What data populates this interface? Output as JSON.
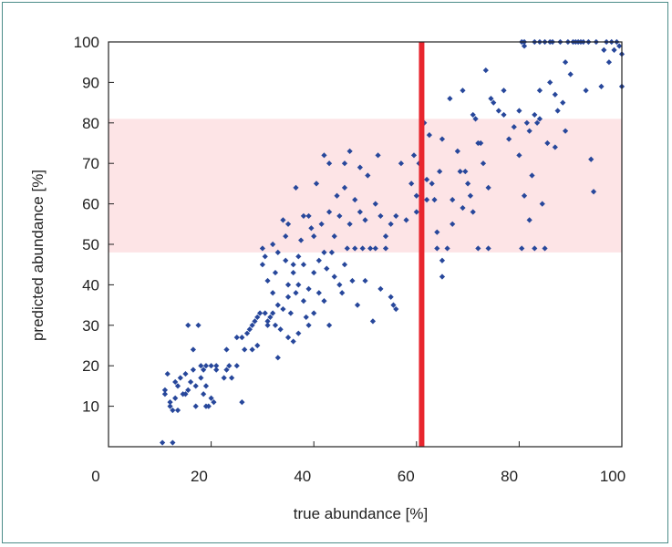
{
  "chart_data": {
    "type": "scatter",
    "title": "",
    "xlabel": "true abundance [%]",
    "ylabel": "predicted abundance [%]",
    "xlim": [
      0,
      100
    ],
    "ylim": [
      0,
      100
    ],
    "xticks": [
      0,
      20,
      40,
      60,
      80,
      100
    ],
    "yticks": [
      10,
      20,
      30,
      40,
      50,
      60,
      70,
      80,
      90,
      100
    ],
    "grid": false,
    "point_color": "#27479b",
    "band": {
      "y_range": [
        48,
        81
      ],
      "color": "#fde4e6"
    },
    "reference_line": {
      "x": 61,
      "color": "#e8262e"
    },
    "series": [
      {
        "points": [
          [
            10.5,
            1
          ],
          [
            12.5,
            1
          ],
          [
            11,
            14
          ],
          [
            11,
            13
          ],
          [
            11.5,
            18
          ],
          [
            12,
            11
          ],
          [
            12,
            10
          ],
          [
            12.5,
            9
          ],
          [
            13,
            12
          ],
          [
            13,
            16
          ],
          [
            13.5,
            15
          ],
          [
            13.5,
            9
          ],
          [
            14,
            17
          ],
          [
            14.5,
            13
          ],
          [
            15,
            13
          ],
          [
            15,
            18
          ],
          [
            15.5,
            14
          ],
          [
            15.5,
            30
          ],
          [
            16,
            16
          ],
          [
            16.5,
            24
          ],
          [
            16.5,
            19
          ],
          [
            17,
            15
          ],
          [
            17,
            10
          ],
          [
            17.5,
            30
          ],
          [
            18,
            20
          ],
          [
            18,
            17
          ],
          [
            18.5,
            19
          ],
          [
            18.5,
            13
          ],
          [
            19,
            20
          ],
          [
            19,
            15
          ],
          [
            19,
            10
          ],
          [
            19.5,
            10
          ],
          [
            20,
            20
          ],
          [
            20,
            12
          ],
          [
            20.5,
            11
          ],
          [
            21,
            19
          ],
          [
            21,
            20
          ],
          [
            22.5,
            17
          ],
          [
            23,
            19
          ],
          [
            23,
            24
          ],
          [
            23.5,
            20
          ],
          [
            24,
            17
          ],
          [
            25,
            27
          ],
          [
            25,
            20
          ],
          [
            26,
            27
          ],
          [
            26,
            11
          ],
          [
            26.5,
            24
          ],
          [
            27,
            28
          ],
          [
            27.5,
            29
          ],
          [
            28,
            24
          ],
          [
            28,
            30
          ],
          [
            28.5,
            31
          ],
          [
            29,
            32
          ],
          [
            29,
            25
          ],
          [
            29.5,
            33
          ],
          [
            30,
            45
          ],
          [
            30,
            49
          ],
          [
            30.5,
            47
          ],
          [
            30.5,
            33
          ],
          [
            31,
            30
          ],
          [
            31,
            41
          ],
          [
            31,
            31
          ],
          [
            31.5,
            32
          ],
          [
            32,
            38
          ],
          [
            32,
            33
          ],
          [
            32,
            50
          ],
          [
            32.5,
            30
          ],
          [
            32.5,
            43
          ],
          [
            33,
            35
          ],
          [
            33,
            22
          ],
          [
            33,
            48
          ],
          [
            33.5,
            29
          ],
          [
            34,
            56
          ],
          [
            34,
            34
          ],
          [
            34.5,
            52
          ],
          [
            34.5,
            46
          ],
          [
            35,
            55
          ],
          [
            35,
            40
          ],
          [
            35,
            27
          ],
          [
            35,
            37
          ],
          [
            35.5,
            33
          ],
          [
            36,
            43
          ],
          [
            36,
            45
          ],
          [
            36,
            26
          ],
          [
            36.5,
            64
          ],
          [
            36.5,
            38
          ],
          [
            37,
            28
          ],
          [
            37,
            47
          ],
          [
            37,
            40
          ],
          [
            37.5,
            51
          ],
          [
            38,
            36
          ],
          [
            38,
            57
          ],
          [
            38,
            45
          ],
          [
            38.5,
            32
          ],
          [
            39,
            57
          ],
          [
            39,
            39
          ],
          [
            39,
            30
          ],
          [
            39.5,
            54
          ],
          [
            40,
            33
          ],
          [
            40,
            43
          ],
          [
            40,
            52
          ],
          [
            40.5,
            65
          ],
          [
            41,
            46
          ],
          [
            41,
            38
          ],
          [
            41.5,
            55
          ],
          [
            42,
            48
          ],
          [
            42,
            36
          ],
          [
            42,
            72
          ],
          [
            42.5,
            44
          ],
          [
            43,
            58
          ],
          [
            43,
            70
          ],
          [
            43,
            30
          ],
          [
            43.5,
            48
          ],
          [
            44,
            52
          ],
          [
            44,
            42
          ],
          [
            44.5,
            62
          ],
          [
            45,
            57
          ],
          [
            45,
            40
          ],
          [
            45.5,
            38
          ],
          [
            46,
            64
          ],
          [
            46,
            45
          ],
          [
            46,
            70
          ],
          [
            46.5,
            49
          ],
          [
            47,
            73
          ],
          [
            47,
            55
          ],
          [
            47.5,
            41
          ],
          [
            48,
            61
          ],
          [
            48,
            49
          ],
          [
            48.5,
            35
          ],
          [
            49,
            69
          ],
          [
            49,
            58
          ],
          [
            49.5,
            49
          ],
          [
            50,
            56
          ],
          [
            50,
            41
          ],
          [
            50.5,
            67
          ],
          [
            51,
            49
          ],
          [
            51.5,
            31
          ],
          [
            52,
            60
          ],
          [
            52,
            49
          ],
          [
            52.5,
            72
          ],
          [
            53,
            57
          ],
          [
            53,
            39
          ],
          [
            54,
            52
          ],
          [
            54,
            49
          ],
          [
            55,
            37
          ],
          [
            55,
            55
          ],
          [
            55.5,
            35
          ],
          [
            56,
            57
          ],
          [
            56,
            34
          ],
          [
            57,
            70
          ],
          [
            58,
            56
          ],
          [
            59,
            65
          ],
          [
            59.5,
            72
          ],
          [
            60,
            62
          ],
          [
            60,
            58
          ],
          [
            60.5,
            70
          ],
          [
            61.5,
            80
          ],
          [
            62,
            61
          ],
          [
            62,
            66
          ],
          [
            62.5,
            77
          ],
          [
            63,
            65
          ],
          [
            63.5,
            61
          ],
          [
            64,
            53
          ],
          [
            64,
            49
          ],
          [
            64.5,
            68
          ],
          [
            65,
            76
          ],
          [
            65,
            42
          ],
          [
            65,
            46
          ],
          [
            66,
            49
          ],
          [
            66.5,
            86
          ],
          [
            67,
            61
          ],
          [
            67,
            55
          ],
          [
            68,
            73
          ],
          [
            68.5,
            68
          ],
          [
            69,
            59
          ],
          [
            69,
            88
          ],
          [
            69.5,
            68
          ],
          [
            70,
            65
          ],
          [
            70.5,
            62
          ],
          [
            71,
            58
          ],
          [
            71,
            82
          ],
          [
            71.5,
            81
          ],
          [
            72,
            75
          ],
          [
            72,
            49
          ],
          [
            72.5,
            75
          ],
          [
            73,
            70
          ],
          [
            73.5,
            93
          ],
          [
            74,
            49
          ],
          [
            74,
            64
          ],
          [
            74.5,
            86
          ],
          [
            75,
            85
          ],
          [
            76,
            83
          ],
          [
            77,
            88
          ],
          [
            77,
            82
          ],
          [
            78,
            76
          ],
          [
            79,
            79
          ],
          [
            80,
            83
          ],
          [
            80,
            72
          ],
          [
            80.5,
            49
          ],
          [
            80.5,
            100
          ],
          [
            81,
            100
          ],
          [
            81,
            62
          ],
          [
            81.5,
            80
          ],
          [
            82,
            56
          ],
          [
            82,
            78
          ],
          [
            82.5,
            67
          ],
          [
            83,
            82
          ],
          [
            83,
            49
          ],
          [
            83.5,
            80
          ],
          [
            84,
            81
          ],
          [
            84,
            88
          ],
          [
            84.5,
            60
          ],
          [
            85,
            49
          ],
          [
            85,
            100
          ],
          [
            85.5,
            75
          ],
          [
            86,
            90
          ],
          [
            86,
            100
          ],
          [
            87,
            87
          ],
          [
            87,
            74
          ],
          [
            87.5,
            83
          ],
          [
            88,
            100
          ],
          [
            88.5,
            85
          ],
          [
            89,
            78
          ],
          [
            89,
            95
          ],
          [
            89.5,
            100
          ],
          [
            90,
            92
          ],
          [
            90.5,
            100
          ],
          [
            91,
            100
          ],
          [
            91.5,
            100
          ],
          [
            92,
            100
          ],
          [
            92.5,
            100
          ],
          [
            93,
            88
          ],
          [
            93.5,
            100
          ],
          [
            94,
            71
          ],
          [
            94.5,
            63
          ],
          [
            95,
            100
          ],
          [
            96,
            89
          ],
          [
            97,
            100
          ],
          [
            97.5,
            95
          ],
          [
            98,
            100
          ],
          [
            98.5,
            98
          ],
          [
            99,
            100
          ],
          [
            99.5,
            99
          ],
          [
            100,
            89
          ],
          [
            100,
            97
          ],
          [
            81,
            99
          ],
          [
            83,
            100
          ],
          [
            84,
            100
          ],
          [
            86.5,
            100
          ],
          [
            96.5,
            98
          ]
        ]
      }
    ]
  }
}
